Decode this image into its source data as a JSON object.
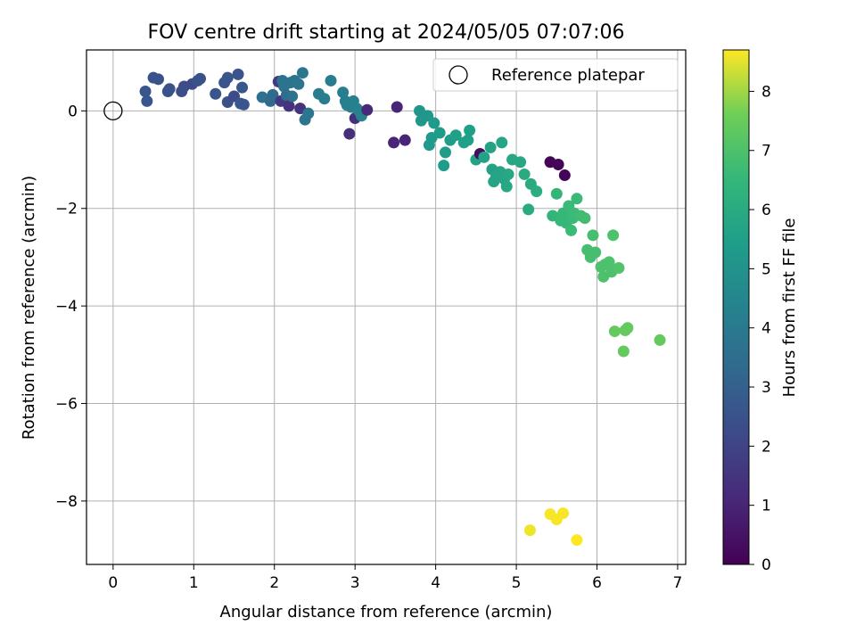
{
  "chart_data": {
    "type": "scatter",
    "title": "FOV centre drift starting at 2024/05/05 07:07:06",
    "xlabel": "Angular distance from reference (arcmin)",
    "ylabel": "Rotation from reference (arcmin)",
    "xlim": [
      -0.33,
      7.1
    ],
    "ylim": [
      -9.3,
      1.25
    ],
    "xticks": [
      0,
      1,
      2,
      3,
      4,
      5,
      6,
      7
    ],
    "yticks": [
      0,
      -2,
      -4,
      -6,
      -8
    ],
    "grid": true,
    "legend": {
      "placement": "top-right",
      "entries": [
        "Reference platepar"
      ]
    },
    "reference_point": {
      "x": 0,
      "y": 0,
      "marker": "open-circle"
    },
    "colorbar": {
      "label": "Hours from first FF file",
      "range": [
        0,
        8.7
      ],
      "ticks": [
        0,
        1,
        2,
        3,
        4,
        5,
        6,
        7,
        8
      ],
      "colormap": "viridis"
    },
    "points": [
      {
        "x": 0.4,
        "y": 0.4,
        "h": 2.3
      },
      {
        "x": 0.42,
        "y": 0.2,
        "h": 2.3
      },
      {
        "x": 0.5,
        "y": 0.68,
        "h": 2.2
      },
      {
        "x": 0.56,
        "y": 0.65,
        "h": 2.2
      },
      {
        "x": 0.68,
        "y": 0.4,
        "h": 2.2
      },
      {
        "x": 0.7,
        "y": 0.45,
        "h": 2.2
      },
      {
        "x": 0.85,
        "y": 0.4,
        "h": 2.1
      },
      {
        "x": 0.88,
        "y": 0.5,
        "h": 2.1
      },
      {
        "x": 0.98,
        "y": 0.55,
        "h": 2.0
      },
      {
        "x": 1.05,
        "y": 0.62,
        "h": 2.2
      },
      {
        "x": 1.08,
        "y": 0.66,
        "h": 2.2
      },
      {
        "x": 1.27,
        "y": 0.35,
        "h": 2.3
      },
      {
        "x": 1.38,
        "y": 0.58,
        "h": 2.3
      },
      {
        "x": 1.42,
        "y": 0.68,
        "h": 2.3
      },
      {
        "x": 1.42,
        "y": 0.18,
        "h": 2.2
      },
      {
        "x": 1.5,
        "y": 0.3,
        "h": 2.0
      },
      {
        "x": 1.55,
        "y": 0.75,
        "h": 2.3
      },
      {
        "x": 1.58,
        "y": 0.15,
        "h": 2.4
      },
      {
        "x": 1.6,
        "y": 0.48,
        "h": 2.4
      },
      {
        "x": 1.62,
        "y": 0.13,
        "h": 2.3
      },
      {
        "x": 1.85,
        "y": 0.28,
        "h": 3.2
      },
      {
        "x": 1.95,
        "y": 0.2,
        "h": 3.0
      },
      {
        "x": 1.98,
        "y": 0.33,
        "h": 3.0
      },
      {
        "x": 2.05,
        "y": 0.6,
        "h": 1.5
      },
      {
        "x": 2.08,
        "y": 0.2,
        "h": 1.5
      },
      {
        "x": 2.1,
        "y": 0.62,
        "h": 3.3
      },
      {
        "x": 2.12,
        "y": 0.5,
        "h": 3.3
      },
      {
        "x": 2.15,
        "y": 0.32,
        "h": 3.1
      },
      {
        "x": 2.18,
        "y": 0.1,
        "h": 1.3
      },
      {
        "x": 2.2,
        "y": 0.58,
        "h": 3.3
      },
      {
        "x": 2.22,
        "y": 0.3,
        "h": 3.3
      },
      {
        "x": 2.25,
        "y": 0.62,
        "h": 3.3
      },
      {
        "x": 2.3,
        "y": 0.55,
        "h": 3.4
      },
      {
        "x": 2.32,
        "y": 0.05,
        "h": 1.3
      },
      {
        "x": 2.35,
        "y": 0.78,
        "h": 3.5
      },
      {
        "x": 2.38,
        "y": -0.18,
        "h": 3.4
      },
      {
        "x": 2.42,
        "y": -0.05,
        "h": 3.4
      },
      {
        "x": 2.55,
        "y": 0.35,
        "h": 3.6
      },
      {
        "x": 2.62,
        "y": 0.25,
        "h": 3.6
      },
      {
        "x": 2.7,
        "y": 0.62,
        "h": 3.7
      },
      {
        "x": 2.85,
        "y": 0.38,
        "h": 3.7
      },
      {
        "x": 2.88,
        "y": 0.2,
        "h": 3.7
      },
      {
        "x": 2.9,
        "y": 0.12,
        "h": 3.8
      },
      {
        "x": 2.93,
        "y": -0.47,
        "h": 1.2
      },
      {
        "x": 2.95,
        "y": 0.08,
        "h": 3.8
      },
      {
        "x": 2.98,
        "y": 0.2,
        "h": 3.8
      },
      {
        "x": 3.0,
        "y": -0.15,
        "h": 1.2
      },
      {
        "x": 3.02,
        "y": 0.05,
        "h": 3.9
      },
      {
        "x": 3.05,
        "y": 0.0,
        "h": 3.9
      },
      {
        "x": 3.08,
        "y": -0.1,
        "h": 3.9
      },
      {
        "x": 3.15,
        "y": 0.02,
        "h": 1.0
      },
      {
        "x": 3.48,
        "y": -0.65,
        "h": 0.9
      },
      {
        "x": 3.52,
        "y": 0.08,
        "h": 0.9
      },
      {
        "x": 3.62,
        "y": -0.6,
        "h": 0.9
      },
      {
        "x": 3.8,
        "y": 0.0,
        "h": 4.6
      },
      {
        "x": 3.82,
        "y": -0.2,
        "h": 4.6
      },
      {
        "x": 3.9,
        "y": -0.1,
        "h": 4.6
      },
      {
        "x": 3.92,
        "y": -0.7,
        "h": 4.7
      },
      {
        "x": 3.95,
        "y": -0.55,
        "h": 4.7
      },
      {
        "x": 3.98,
        "y": -0.25,
        "h": 4.7
      },
      {
        "x": 4.05,
        "y": -0.45,
        "h": 4.8
      },
      {
        "x": 4.1,
        "y": -1.12,
        "h": 4.8
      },
      {
        "x": 4.12,
        "y": -0.85,
        "h": 4.8
      },
      {
        "x": 4.18,
        "y": -0.6,
        "h": 4.8
      },
      {
        "x": 4.25,
        "y": -0.5,
        "h": 4.9
      },
      {
        "x": 4.35,
        "y": -0.65,
        "h": 4.9
      },
      {
        "x": 4.4,
        "y": -0.6,
        "h": 4.9
      },
      {
        "x": 4.42,
        "y": -0.4,
        "h": 4.9
      },
      {
        "x": 4.5,
        "y": -1.0,
        "h": 5.0
      },
      {
        "x": 4.55,
        "y": -0.88,
        "h": 0.3
      },
      {
        "x": 4.6,
        "y": -0.95,
        "h": 5.0
      },
      {
        "x": 4.68,
        "y": -0.75,
        "h": 5.0
      },
      {
        "x": 4.7,
        "y": -1.2,
        "h": 5.0
      },
      {
        "x": 4.72,
        "y": -1.45,
        "h": 5.1
      },
      {
        "x": 4.75,
        "y": -1.35,
        "h": 5.1
      },
      {
        "x": 4.8,
        "y": -1.25,
        "h": 5.1
      },
      {
        "x": 4.82,
        "y": -0.65,
        "h": 5.1
      },
      {
        "x": 4.85,
        "y": -1.4,
        "h": 5.1
      },
      {
        "x": 4.88,
        "y": -1.55,
        "h": 5.2
      },
      {
        "x": 4.9,
        "y": -1.3,
        "h": 5.2
      },
      {
        "x": 4.95,
        "y": -1.0,
        "h": 5.2
      },
      {
        "x": 5.05,
        "y": -1.05,
        "h": 5.2
      },
      {
        "x": 5.1,
        "y": -1.3,
        "h": 5.3
      },
      {
        "x": 5.15,
        "y": -2.02,
        "h": 5.3
      },
      {
        "x": 5.18,
        "y": -1.5,
        "h": 5.3
      },
      {
        "x": 5.25,
        "y": -1.65,
        "h": 5.4
      },
      {
        "x": 5.42,
        "y": -1.05,
        "h": 0.1
      },
      {
        "x": 5.45,
        "y": -2.15,
        "h": 5.7
      },
      {
        "x": 5.5,
        "y": -1.7,
        "h": 5.7
      },
      {
        "x": 5.52,
        "y": -1.1,
        "h": 0.1
      },
      {
        "x": 5.55,
        "y": -2.25,
        "h": 5.8
      },
      {
        "x": 5.58,
        "y": -2.1,
        "h": 5.8
      },
      {
        "x": 5.6,
        "y": -1.32,
        "h": 0.1
      },
      {
        "x": 5.62,
        "y": -2.3,
        "h": 5.8
      },
      {
        "x": 5.65,
        "y": -1.95,
        "h": 5.9
      },
      {
        "x": 5.68,
        "y": -2.45,
        "h": 5.9
      },
      {
        "x": 5.7,
        "y": -2.2,
        "h": 5.9
      },
      {
        "x": 5.72,
        "y": -2.1,
        "h": 5.9
      },
      {
        "x": 5.75,
        "y": -1.8,
        "h": 5.9
      },
      {
        "x": 5.8,
        "y": -2.15,
        "h": 6.0
      },
      {
        "x": 5.85,
        "y": -2.2,
        "h": 6.0
      },
      {
        "x": 5.88,
        "y": -2.85,
        "h": 6.1
      },
      {
        "x": 5.92,
        "y": -3.0,
        "h": 6.1
      },
      {
        "x": 5.95,
        "y": -2.55,
        "h": 6.1
      },
      {
        "x": 5.98,
        "y": -2.9,
        "h": 6.1
      },
      {
        "x": 6.05,
        "y": -3.2,
        "h": 6.2
      },
      {
        "x": 6.08,
        "y": -3.4,
        "h": 6.2
      },
      {
        "x": 6.1,
        "y": -3.15,
        "h": 6.2
      },
      {
        "x": 6.15,
        "y": -3.1,
        "h": 6.2
      },
      {
        "x": 6.18,
        "y": -3.3,
        "h": 6.2
      },
      {
        "x": 6.2,
        "y": -2.55,
        "h": 6.2
      },
      {
        "x": 6.27,
        "y": -3.22,
        "h": 6.3
      },
      {
        "x": 6.22,
        "y": -4.52,
        "h": 6.6
      },
      {
        "x": 6.33,
        "y": -4.93,
        "h": 6.6
      },
      {
        "x": 6.35,
        "y": -4.5,
        "h": 6.6
      },
      {
        "x": 6.38,
        "y": -4.45,
        "h": 6.6
      },
      {
        "x": 6.78,
        "y": -4.7,
        "h": 6.6
      },
      {
        "x": 5.17,
        "y": -8.6,
        "h": 8.5
      },
      {
        "x": 5.42,
        "y": -8.27,
        "h": 8.6
      },
      {
        "x": 5.5,
        "y": -8.38,
        "h": 8.6
      },
      {
        "x": 5.58,
        "y": -8.25,
        "h": 8.6
      },
      {
        "x": 5.75,
        "y": -8.8,
        "h": 8.7
      }
    ]
  }
}
